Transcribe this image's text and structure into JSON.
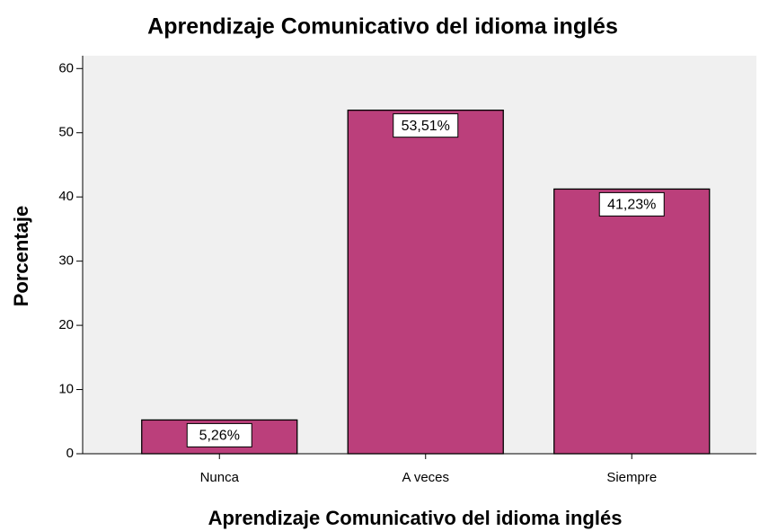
{
  "chart_data": {
    "type": "bar",
    "title": "Aprendizaje Comunicativo del idioma inglés",
    "xlabel": "Aprendizaje Comunicativo del idioma inglés",
    "ylabel": "Porcentaje",
    "categories": [
      "Nunca",
      "A veces",
      "Siempre"
    ],
    "values": [
      5.26,
      53.51,
      41.23
    ],
    "value_labels": [
      "5,26%",
      "53,51%",
      "41,23%"
    ],
    "color": "#bb3f7b",
    "ylim": [
      0,
      62
    ],
    "yticks": [
      0,
      10,
      20,
      30,
      40,
      50,
      60
    ],
    "grid": false
  }
}
